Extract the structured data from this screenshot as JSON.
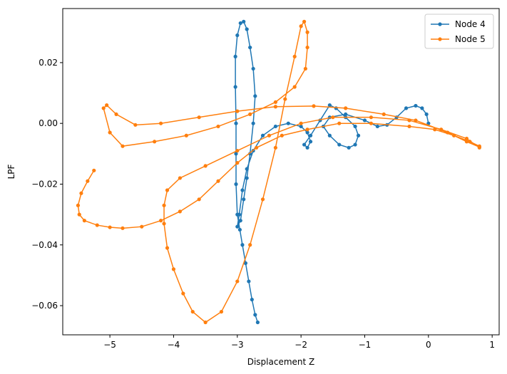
{
  "chart_data": {
    "type": "line",
    "xlabel": "Displacement Z",
    "ylabel": "LPF",
    "xlim": [
      -5.74,
      1.11
    ],
    "ylim": [
      -0.0696,
      0.0378
    ],
    "xticks": [
      {
        "value": -5,
        "label": "−5"
      },
      {
        "value": -4,
        "label": "−4"
      },
      {
        "value": -3,
        "label": "−3"
      },
      {
        "value": -2,
        "label": "−2"
      },
      {
        "value": -1,
        "label": "−1"
      },
      0,
      1
    ],
    "yticks": [
      {
        "value": -0.06,
        "label": "−0.06"
      },
      {
        "value": -0.04,
        "label": "−0.04"
      },
      {
        "value": -0.02,
        "label": "−0.02"
      },
      {
        "value": 0,
        "label": "0.00"
      },
      {
        "value": 0.02,
        "label": "0.02"
      }
    ],
    "legend": "upper right",
    "series": [
      {
        "name": "Node 4",
        "color": "#1f77b4",
        "x": [
          -2.68,
          -2.72,
          -2.77,
          -2.82,
          -2.87,
          -2.92,
          -2.96,
          -3.0,
          -3.02,
          -3.02,
          -3.02,
          -3.03,
          -3.03,
          -3.0,
          -2.95,
          -2.9,
          -2.85,
          -2.8,
          -2.75,
          -2.72,
          -2.75,
          -2.8,
          -2.85,
          -2.9,
          -2.95,
          -3.0,
          -2.97,
          -2.92,
          -2.85,
          -2.75,
          -2.6,
          -2.4,
          -2.2,
          -2.0,
          -1.9,
          -1.85,
          -1.9,
          -1.95,
          -1.85,
          -1.7,
          -1.55,
          -1.45,
          -1.3,
          -1.15,
          -1.1,
          -1.15,
          -1.25,
          -1.4,
          -1.55,
          -1.65,
          -1.55,
          -1.3,
          -1.0,
          -0.8,
          -0.65,
          -0.5,
          -0.35,
          -0.2,
          -0.1,
          -0.03,
          0.0
        ],
        "values": [
          -0.0655,
          -0.063,
          -0.058,
          -0.052,
          -0.046,
          -0.04,
          -0.035,
          -0.03,
          -0.02,
          -0.01,
          0.0,
          0.012,
          0.022,
          0.029,
          0.033,
          0.0335,
          0.031,
          0.025,
          0.018,
          0.009,
          0.0,
          -0.01,
          -0.018,
          -0.025,
          -0.032,
          -0.034,
          -0.03,
          -0.022,
          -0.015,
          -0.009,
          -0.004,
          -0.001,
          0.0,
          -0.001,
          -0.003,
          -0.006,
          -0.008,
          -0.007,
          -0.004,
          0.001,
          0.006,
          0.005,
          0.002,
          -0.001,
          -0.004,
          -0.007,
          -0.008,
          -0.007,
          -0.004,
          -0.001,
          0.002,
          0.003,
          0.001,
          -0.001,
          -0.0005,
          0.002,
          0.005,
          0.0058,
          0.005,
          0.003,
          0.0
        ]
      },
      {
        "name": "Node 5",
        "color": "#ff7f0e",
        "x": [
          -5.25,
          -5.35,
          -5.45,
          -5.5,
          -5.48,
          -5.4,
          -5.2,
          -5.0,
          -4.8,
          -4.5,
          -4.2,
          -3.9,
          -3.6,
          -3.3,
          -3.0,
          -2.7,
          -2.3,
          -1.9,
          -1.4,
          -0.9,
          -0.3,
          0.1,
          0.4,
          0.65,
          0.8,
          0.8,
          0.6,
          0.2,
          -0.3,
          -0.9,
          -1.5,
          -2.0,
          -2.5,
          -3.0,
          -3.5,
          -3.9,
          -4.1,
          -4.15,
          -4.15,
          -4.1,
          -4.0,
          -3.85,
          -3.7,
          -3.5,
          -3.25,
          -3.0,
          -2.8,
          -2.6,
          -2.4,
          -2.25,
          -2.1,
          -2.0,
          -1.95,
          -1.9,
          -1.9,
          -1.93,
          -2.1,
          -2.4,
          -2.8,
          -3.3,
          -3.8,
          -4.3,
          -4.8,
          -5.0,
          -5.1,
          -5.05,
          -4.9,
          -4.6,
          -4.2,
          -3.6,
          -3.0,
          -2.4,
          -1.8,
          -1.3,
          -0.7,
          -0.2,
          0.3,
          0.6,
          0.8
        ],
        "values": [
          -0.0155,
          -0.019,
          -0.023,
          -0.027,
          -0.03,
          -0.032,
          -0.0335,
          -0.0342,
          -0.0345,
          -0.034,
          -0.032,
          -0.029,
          -0.025,
          -0.019,
          -0.013,
          -0.008,
          -0.004,
          -0.002,
          0.0,
          0.0,
          -0.001,
          -0.002,
          -0.004,
          -0.006,
          -0.0075,
          -0.008,
          -0.005,
          -0.002,
          0.001,
          0.002,
          0.002,
          0.0,
          -0.004,
          -0.009,
          -0.014,
          -0.018,
          -0.022,
          -0.027,
          -0.033,
          -0.041,
          -0.048,
          -0.056,
          -0.062,
          -0.0655,
          -0.062,
          -0.052,
          -0.04,
          -0.025,
          -0.008,
          0.008,
          0.022,
          0.032,
          0.0335,
          0.03,
          0.025,
          0.018,
          0.012,
          0.007,
          0.003,
          -0.001,
          -0.004,
          -0.006,
          -0.0075,
          -0.003,
          0.005,
          0.006,
          0.003,
          -0.0005,
          0.0,
          0.002,
          0.004,
          0.0055,
          0.0057,
          0.005,
          0.003,
          0.001,
          -0.003,
          -0.006,
          -0.0078
        ]
      }
    ]
  }
}
